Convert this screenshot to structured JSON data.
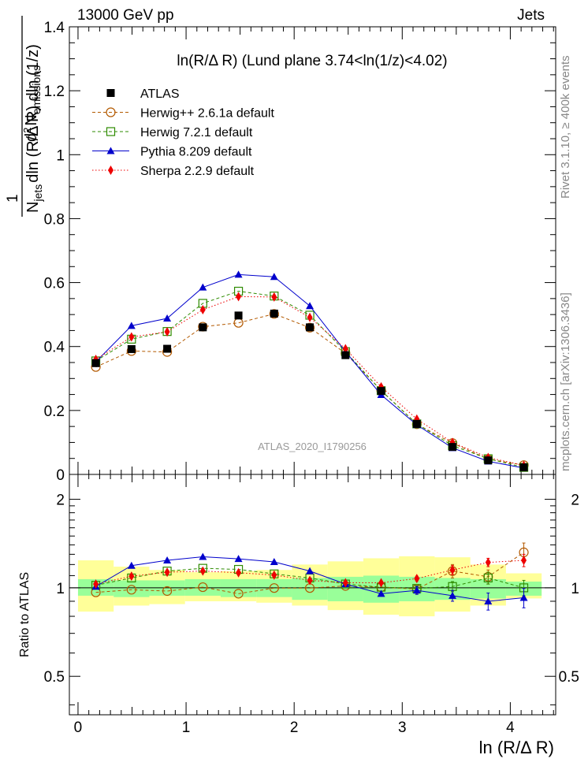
{
  "header": {
    "left": "13000 GeV pp",
    "right": "Jets"
  },
  "side_text": {
    "rivet": "Rivet 3.1.10, ≥ 400k events",
    "mcplots": "mcplots.cern.ch [arXiv:1306.3436]"
  },
  "watermark": "ATLAS_2020_I1790256",
  "chart_data": {
    "type": "line",
    "title": "ln(R/Δ R) (Lund plane 3.74<ln(1/z)<4.02)",
    "xlabel": "ln (R/Δ R)",
    "ylabel_parts": {
      "one": "1",
      "num_d": "d",
      "num_exp": "2",
      "num_N": "N",
      "num_sub": "emissions",
      "den_N": "N",
      "den_sub": "jets",
      "den_rest": "dln (R/Δ R) dln (1/z)"
    },
    "ratio_ylabel": "Ratio to ATLAS",
    "xlim": [
      -0.08,
      4.42
    ],
    "ylim": [
      0,
      1.4
    ],
    "ratio_ylim": [
      0.37,
      2.43
    ],
    "x_ticks": [
      "0",
      "1",
      "2",
      "3",
      "4"
    ],
    "y_ticks": [
      "0",
      "0.2",
      "0.4",
      "0.6",
      "0.8",
      "1",
      "1.2",
      "1.4"
    ],
    "ratio_ticks": [
      "0.5",
      "1",
      "2"
    ],
    "x": [
      0.165,
      0.495,
      0.825,
      1.155,
      1.485,
      1.815,
      2.145,
      2.475,
      2.805,
      3.135,
      3.465,
      3.795,
      4.125
    ],
    "bin_edges": [
      0,
      0.33,
      0.66,
      0.99,
      1.32,
      1.65,
      1.98,
      2.31,
      2.64,
      2.97,
      3.3,
      3.63,
      3.96,
      4.29
    ],
    "band_inner": [
      [
        0.94,
        1.07
      ],
      [
        0.93,
        1.06
      ],
      [
        0.94,
        1.06
      ],
      [
        0.94,
        1.07
      ],
      [
        0.93,
        1.07
      ],
      [
        0.93,
        1.07
      ],
      [
        0.91,
        1.08
      ],
      [
        0.9,
        1.09
      ],
      [
        0.89,
        1.1
      ],
      [
        0.9,
        1.09
      ],
      [
        0.91,
        1.08
      ],
      [
        0.92,
        1.07
      ],
      [
        0.94,
        1.05
      ]
    ],
    "band_outer": [
      [
        0.83,
        1.24
      ],
      [
        0.87,
        1.18
      ],
      [
        0.88,
        1.15
      ],
      [
        0.9,
        1.13
      ],
      [
        0.9,
        1.14
      ],
      [
        0.89,
        1.15
      ],
      [
        0.87,
        1.2
      ],
      [
        0.84,
        1.23
      ],
      [
        0.81,
        1.26
      ],
      [
        0.8,
        1.28
      ],
      [
        0.83,
        1.27
      ],
      [
        0.87,
        1.2
      ],
      [
        0.92,
        1.12
      ]
    ],
    "series": [
      {
        "name": "ATLAS",
        "color": "#000000",
        "marker": "square-filled",
        "line": "none",
        "values": [
          0.348,
          0.392,
          0.393,
          0.46,
          0.497,
          0.503,
          0.46,
          0.373,
          0.261,
          0.158,
          0.086,
          0.044,
          0.022
        ],
        "ratio": [
          1,
          1,
          1,
          1,
          1,
          1,
          1,
          1,
          1,
          1,
          1,
          1,
          1
        ]
      },
      {
        "name": "Herwig++ 2.6.1a default",
        "color": "#b35900",
        "marker": "circle-open",
        "line": "dashed",
        "values": [
          0.336,
          0.386,
          0.383,
          0.462,
          0.474,
          0.502,
          0.459,
          0.379,
          0.263,
          0.157,
          0.098,
          0.048,
          0.029
        ],
        "ratio": [
          0.965,
          0.985,
          0.975,
          1.005,
          0.955,
          0.998,
          0.998,
          1.015,
          1.005,
          0.99,
          1.14,
          1.09,
          1.32
        ],
        "ratio_err": [
          0,
          0,
          0,
          0,
          0,
          0,
          0,
          0,
          0,
          0.02,
          0.06,
          0.06,
          0.1
        ]
      },
      {
        "name": "Herwig 7.2.1 default",
        "color": "#2e8b00",
        "marker": "square-open",
        "line": "dashed",
        "values": [
          0.355,
          0.423,
          0.447,
          0.535,
          0.573,
          0.558,
          0.498,
          0.384,
          0.262,
          0.158,
          0.09,
          0.049,
          0.022
        ],
        "ratio": [
          1.02,
          1.08,
          1.14,
          1.165,
          1.155,
          1.115,
          1.08,
          1.03,
          1.005,
          0.995,
          1.01,
          1.08,
          1.0
        ],
        "ratio_err": [
          0,
          0,
          0,
          0,
          0,
          0,
          0,
          0,
          0,
          0.02,
          0.04,
          0.05,
          0.06
        ]
      },
      {
        "name": "Pythia 8.209 default",
        "color": "#0000cc",
        "marker": "triangle-filled",
        "line": "solid",
        "values": [
          0.352,
          0.465,
          0.488,
          0.585,
          0.625,
          0.618,
          0.527,
          0.384,
          0.249,
          0.155,
          0.083,
          0.041,
          0.02
        ],
        "ratio": [
          1.01,
          1.19,
          1.24,
          1.275,
          1.255,
          1.225,
          1.14,
          1.03,
          0.955,
          0.98,
          0.94,
          0.9,
          0.925
        ],
        "ratio_err": [
          0,
          0,
          0,
          0,
          0,
          0,
          0,
          0,
          0,
          0.03,
          0.04,
          0.06,
          0.07
        ]
      },
      {
        "name": "Sherpa 2.2.9 default",
        "color": "#ee0000",
        "marker": "diamond-filled",
        "line": "dotted",
        "values": [
          0.36,
          0.43,
          0.446,
          0.515,
          0.556,
          0.555,
          0.491,
          0.393,
          0.274,
          0.173,
          0.1,
          0.053,
          0.028
        ],
        "ratio": [
          1.03,
          1.095,
          1.13,
          1.14,
          1.125,
          1.105,
          1.06,
          1.04,
          1.04,
          1.075,
          1.15,
          1.22,
          1.24
        ],
        "ratio_err": [
          0,
          0,
          0,
          0,
          0,
          0,
          0,
          0,
          0,
          0.02,
          0.04,
          0.04,
          0.06
        ]
      }
    ]
  }
}
